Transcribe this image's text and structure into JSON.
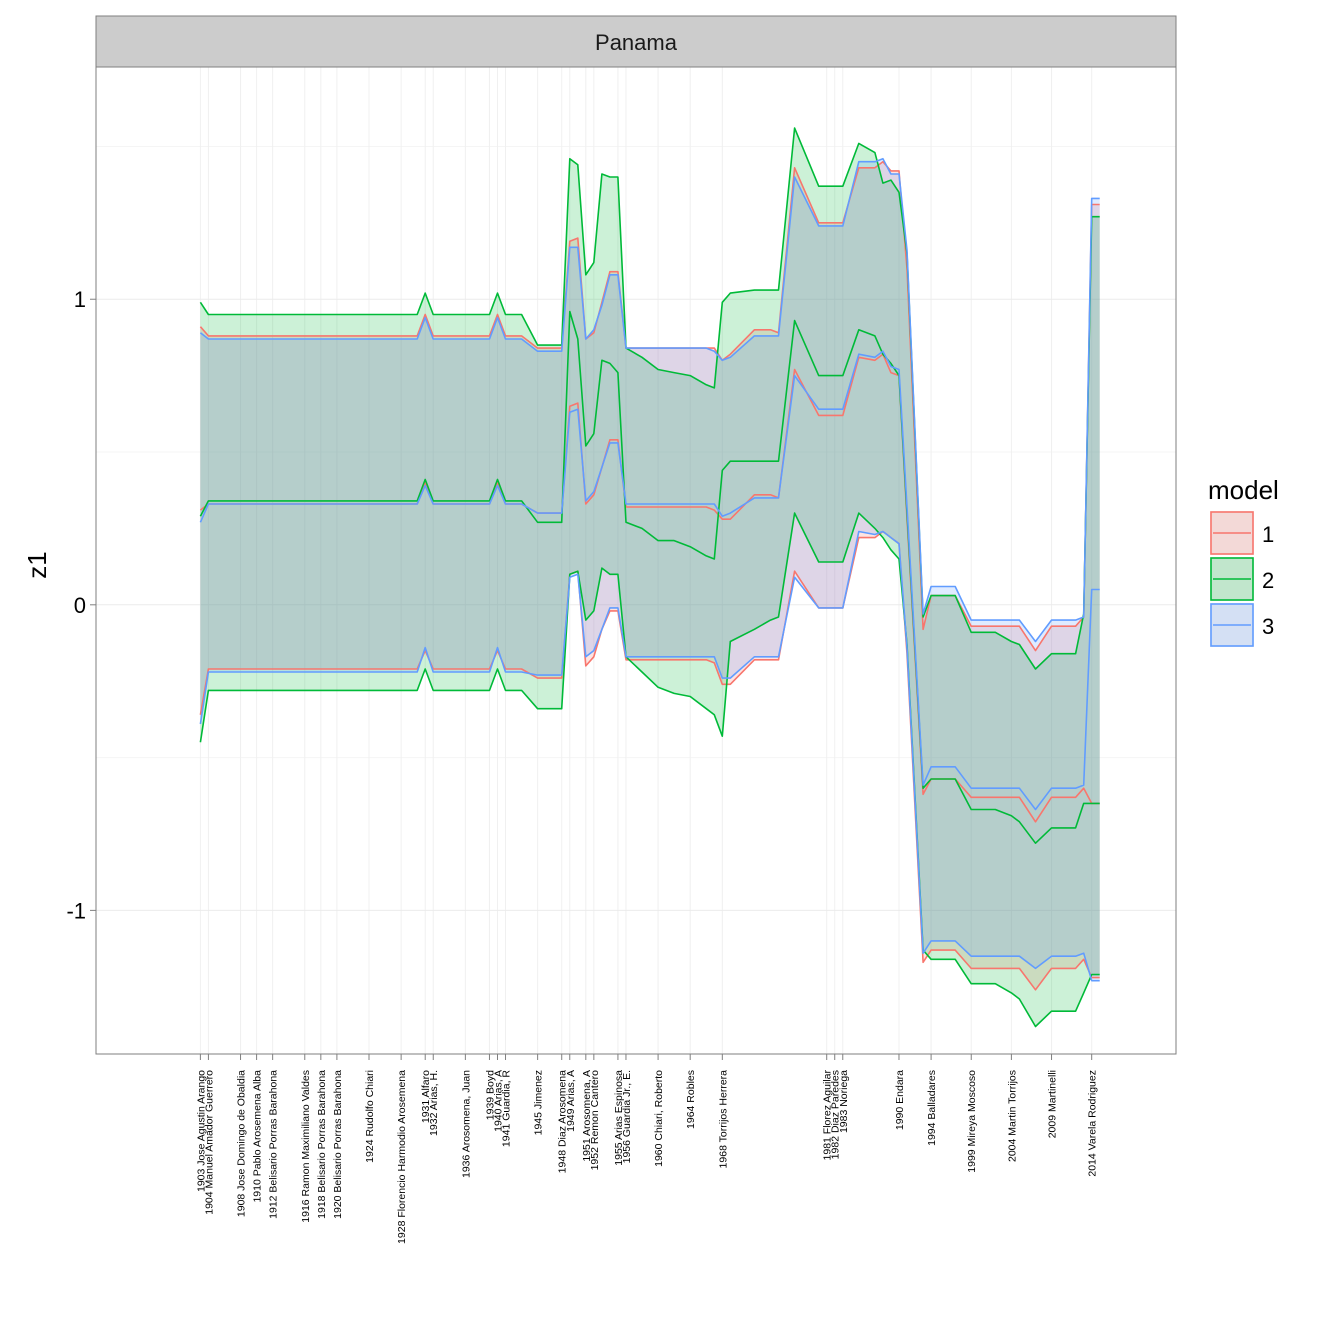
{
  "chart_data": {
    "type": "area",
    "facet_title": "Panama",
    "ylabel": "z1",
    "xlabel": "",
    "ylim": [
      -1.47,
      1.76
    ],
    "xlim": [
      1890.0,
      2024.5
    ],
    "yticks": [
      -1,
      0,
      1
    ],
    "legend": {
      "title": "model",
      "position": "right",
      "items": [
        {
          "label": "1",
          "color": "#F8766D"
        },
        {
          "label": "2",
          "color": "#00BA38"
        },
        {
          "label": "3",
          "color": "#619CFF"
        }
      ]
    },
    "x_ticks": [
      {
        "x": 1903,
        "label": "1903 Jose Agustin Arango"
      },
      {
        "x": 1904,
        "label": "1904 Manuel Amador Guerrero"
      },
      {
        "x": 1908,
        "label": "1908 Jose Domingo de Obaldia"
      },
      {
        "x": 1910,
        "label": "1910 Pablo Arosemena Alba"
      },
      {
        "x": 1912,
        "label": "1912 Belisario Porras Barahona"
      },
      {
        "x": 1916,
        "label": "1916 Ramon Maximiliano Valdes"
      },
      {
        "x": 1918,
        "label": "1918 Belisario Porras Barahona"
      },
      {
        "x": 1920,
        "label": "1920 Belisario Porras Barahona"
      },
      {
        "x": 1924,
        "label": "1924 Rudolfo Chiari"
      },
      {
        "x": 1928,
        "label": "1928 Florencio Harmodio Arosemena"
      },
      {
        "x": 1931,
        "label": "1931 Alfaro"
      },
      {
        "x": 1932,
        "label": "1932 Arias, H."
      },
      {
        "x": 1936,
        "label": "1936 Arosomena, Juan"
      },
      {
        "x": 1939,
        "label": "1939 Boyd"
      },
      {
        "x": 1940,
        "label": "1940 Arias, A"
      },
      {
        "x": 1941,
        "label": "1941 Guardia, R"
      },
      {
        "x": 1945,
        "label": "1945 Jimenez"
      },
      {
        "x": 1948,
        "label": "1948 Diaz Arosomena"
      },
      {
        "x": 1949,
        "label": "1949 Arias, A"
      },
      {
        "x": 1951,
        "label": "1951 Arosomena, A"
      },
      {
        "x": 1952,
        "label": "1952 Remon Cantero"
      },
      {
        "x": 1955,
        "label": "1955 Arias Espinosa"
      },
      {
        "x": 1956,
        "label": "1956 Guardia Jr., E."
      },
      {
        "x": 1960,
        "label": "1960 Chiari, Roberto"
      },
      {
        "x": 1964,
        "label": "1964 Robles"
      },
      {
        "x": 1968,
        "label": "1968 Torrijos Herrera"
      },
      {
        "x": 1981,
        "label": "1981 Florez Aguilar"
      },
      {
        "x": 1982,
        "label": "1982 Diaz Paredes"
      },
      {
        "x": 1983,
        "label": "1983 Noriega"
      },
      {
        "x": 1990,
        "label": "1990 Endara"
      },
      {
        "x": 1994,
        "label": "1994 Balladares"
      },
      {
        "x": 1999,
        "label": "1999 Mireya Moscoso"
      },
      {
        "x": 2004,
        "label": "2004 Martin Torrijos"
      },
      {
        "x": 2009,
        "label": "2009 Martinelli"
      },
      {
        "x": 2014,
        "label": "2014 Varela Rodriguez"
      }
    ],
    "x": [
      1903,
      1904,
      1906,
      1908,
      1910,
      1912,
      1914,
      1916,
      1918,
      1920,
      1922,
      1924,
      1926,
      1928,
      1930,
      1931,
      1932,
      1934,
      1936,
      1938,
      1939,
      1940,
      1941,
      1943,
      1945,
      1946,
      1948,
      1949,
      1950,
      1951,
      1952,
      1953,
      1954,
      1955,
      1956,
      1958,
      1960,
      1962,
      1964,
      1966,
      1967,
      1968,
      1969,
      1972,
      1974,
      1975,
      1977,
      1980,
      1981,
      1982,
      1983,
      1985,
      1987,
      1988,
      1989,
      1990,
      1991,
      1993,
      1994,
      1997,
      1999,
      2002,
      2004,
      2005,
      2007,
      2009,
      2011,
      2012,
      2013,
      2014,
      2015
    ],
    "series": [
      {
        "name": "1",
        "mean": [
          0.31,
          0.33,
          0.33,
          0.33,
          0.33,
          0.33,
          0.33,
          0.33,
          0.33,
          0.33,
          0.33,
          0.33,
          0.33,
          0.33,
          0.33,
          0.4,
          0.33,
          0.33,
          0.33,
          0.33,
          0.33,
          0.4,
          0.33,
          0.33,
          0.3,
          0.3,
          0.3,
          0.65,
          0.66,
          0.33,
          0.36,
          0.45,
          0.54,
          0.54,
          0.32,
          0.32,
          0.32,
          0.32,
          0.32,
          0.32,
          0.31,
          0.28,
          0.28,
          0.36,
          0.36,
          0.35,
          0.77,
          0.62,
          0.62,
          0.62,
          0.62,
          0.81,
          0.8,
          0.82,
          0.76,
          0.75,
          0.28,
          -0.62,
          -0.57,
          -0.57,
          -0.63,
          -0.63,
          -0.63,
          -0.63,
          -0.71,
          -0.63,
          -0.63,
          -0.63,
          -0.6,
          -0.65,
          -0.65
        ],
        "lower": [
          -0.36,
          -0.21,
          -0.21,
          -0.21,
          -0.21,
          -0.21,
          -0.21,
          -0.21,
          -0.21,
          -0.21,
          -0.21,
          -0.21,
          -0.21,
          -0.21,
          -0.21,
          -0.15,
          -0.21,
          -0.21,
          -0.21,
          -0.21,
          -0.21,
          -0.15,
          -0.21,
          -0.21,
          -0.24,
          -0.24,
          -0.24,
          0.1,
          0.11,
          -0.2,
          -0.17,
          -0.08,
          -0.02,
          -0.02,
          -0.18,
          -0.18,
          -0.18,
          -0.18,
          -0.18,
          -0.18,
          -0.19,
          -0.26,
          -0.26,
          -0.18,
          -0.18,
          -0.18,
          0.11,
          -0.01,
          -0.01,
          -0.01,
          -0.01,
          0.22,
          0.22,
          0.24,
          0.22,
          0.2,
          -0.16,
          -1.17,
          -1.13,
          -1.13,
          -1.19,
          -1.19,
          -1.19,
          -1.19,
          -1.26,
          -1.19,
          -1.19,
          -1.19,
          -1.16,
          -1.22,
          -1.22
        ],
        "upper": [
          0.91,
          0.88,
          0.88,
          0.88,
          0.88,
          0.88,
          0.88,
          0.88,
          0.88,
          0.88,
          0.88,
          0.88,
          0.88,
          0.88,
          0.88,
          0.95,
          0.88,
          0.88,
          0.88,
          0.88,
          0.88,
          0.95,
          0.88,
          0.88,
          0.84,
          0.84,
          0.84,
          1.19,
          1.2,
          0.87,
          0.89,
          0.99,
          1.09,
          1.09,
          0.84,
          0.84,
          0.84,
          0.84,
          0.84,
          0.84,
          0.84,
          0.8,
          0.82,
          0.9,
          0.9,
          0.89,
          1.43,
          1.25,
          1.25,
          1.25,
          1.25,
          1.43,
          1.43,
          1.45,
          1.42,
          1.42,
          1.1,
          -0.08,
          0.03,
          0.03,
          -0.07,
          -0.07,
          -0.07,
          -0.07,
          -0.15,
          -0.07,
          -0.07,
          -0.07,
          -0.04,
          1.31,
          1.31
        ]
      },
      {
        "name": "2",
        "mean": [
          0.29,
          0.34,
          0.34,
          0.34,
          0.34,
          0.34,
          0.34,
          0.34,
          0.34,
          0.34,
          0.34,
          0.34,
          0.34,
          0.34,
          0.34,
          0.41,
          0.34,
          0.34,
          0.34,
          0.34,
          0.34,
          0.41,
          0.34,
          0.34,
          0.27,
          0.27,
          0.27,
          0.96,
          0.87,
          0.52,
          0.56,
          0.8,
          0.79,
          0.76,
          0.27,
          0.25,
          0.21,
          0.21,
          0.19,
          0.16,
          0.15,
          0.44,
          0.47,
          0.47,
          0.47,
          0.47,
          0.93,
          0.75,
          0.75,
          0.75,
          0.75,
          0.9,
          0.88,
          0.82,
          0.79,
          0.75,
          0.3,
          -0.6,
          -0.57,
          -0.57,
          -0.67,
          -0.67,
          -0.69,
          -0.71,
          -0.78,
          -0.73,
          -0.73,
          -0.73,
          -0.65,
          -0.65,
          -0.65
        ],
        "lower": [
          -0.45,
          -0.28,
          -0.28,
          -0.28,
          -0.28,
          -0.28,
          -0.28,
          -0.28,
          -0.28,
          -0.28,
          -0.28,
          -0.28,
          -0.28,
          -0.28,
          -0.28,
          -0.21,
          -0.28,
          -0.28,
          -0.28,
          -0.28,
          -0.28,
          -0.21,
          -0.28,
          -0.28,
          -0.34,
          -0.34,
          -0.34,
          0.1,
          0.11,
          -0.05,
          -0.02,
          0.12,
          0.1,
          0.1,
          -0.17,
          -0.22,
          -0.27,
          -0.29,
          -0.3,
          -0.34,
          -0.36,
          -0.43,
          -0.12,
          -0.08,
          -0.05,
          -0.04,
          0.3,
          0.14,
          0.14,
          0.14,
          0.14,
          0.3,
          0.25,
          0.22,
          0.18,
          0.15,
          -0.13,
          -1.13,
          -1.16,
          -1.16,
          -1.24,
          -1.24,
          -1.27,
          -1.29,
          -1.38,
          -1.33,
          -1.33,
          -1.33,
          -1.27,
          -1.21,
          -1.21
        ],
        "upper": [
          0.99,
          0.95,
          0.95,
          0.95,
          0.95,
          0.95,
          0.95,
          0.95,
          0.95,
          0.95,
          0.95,
          0.95,
          0.95,
          0.95,
          0.95,
          1.02,
          0.95,
          0.95,
          0.95,
          0.95,
          0.95,
          1.02,
          0.95,
          0.95,
          0.85,
          0.85,
          0.85,
          1.46,
          1.44,
          1.08,
          1.12,
          1.41,
          1.4,
          1.4,
          0.84,
          0.81,
          0.77,
          0.76,
          0.75,
          0.72,
          0.71,
          0.99,
          1.02,
          1.03,
          1.03,
          1.03,
          1.56,
          1.37,
          1.37,
          1.37,
          1.37,
          1.51,
          1.48,
          1.38,
          1.39,
          1.35,
          1.15,
          -0.04,
          0.03,
          0.03,
          -0.09,
          -0.09,
          -0.12,
          -0.13,
          -0.21,
          -0.16,
          -0.16,
          -0.16,
          -0.03,
          1.27,
          1.27
        ]
      },
      {
        "name": "3",
        "mean": [
          0.27,
          0.33,
          0.33,
          0.33,
          0.33,
          0.33,
          0.33,
          0.33,
          0.33,
          0.33,
          0.33,
          0.33,
          0.33,
          0.33,
          0.33,
          0.39,
          0.33,
          0.33,
          0.33,
          0.33,
          0.33,
          0.39,
          0.33,
          0.33,
          0.3,
          0.3,
          0.3,
          0.63,
          0.64,
          0.34,
          0.37,
          0.45,
          0.53,
          0.53,
          0.33,
          0.33,
          0.33,
          0.33,
          0.33,
          0.33,
          0.33,
          0.29,
          0.3,
          0.35,
          0.35,
          0.35,
          0.75,
          0.64,
          0.64,
          0.64,
          0.64,
          0.82,
          0.81,
          0.83,
          0.78,
          0.77,
          0.32,
          -0.59,
          -0.53,
          -0.53,
          -0.6,
          -0.6,
          -0.6,
          -0.6,
          -0.67,
          -0.6,
          -0.6,
          -0.6,
          -0.59,
          0.05,
          0.05
        ],
        "lower": [
          -0.39,
          -0.22,
          -0.22,
          -0.22,
          -0.22,
          -0.22,
          -0.22,
          -0.22,
          -0.22,
          -0.22,
          -0.22,
          -0.22,
          -0.22,
          -0.22,
          -0.22,
          -0.14,
          -0.22,
          -0.22,
          -0.22,
          -0.22,
          -0.22,
          -0.14,
          -0.22,
          -0.22,
          -0.23,
          -0.23,
          -0.23,
          0.09,
          0.1,
          -0.17,
          -0.15,
          -0.08,
          -0.01,
          -0.01,
          -0.17,
          -0.17,
          -0.17,
          -0.17,
          -0.17,
          -0.17,
          -0.17,
          -0.24,
          -0.24,
          -0.17,
          -0.17,
          -0.17,
          0.09,
          -0.01,
          -0.01,
          -0.01,
          -0.01,
          0.24,
          0.23,
          0.24,
          0.22,
          0.2,
          -0.14,
          -1.14,
          -1.1,
          -1.1,
          -1.15,
          -1.15,
          -1.15,
          -1.15,
          -1.19,
          -1.15,
          -1.15,
          -1.15,
          -1.14,
          -1.23,
          -1.23
        ],
        "upper": [
          0.89,
          0.87,
          0.87,
          0.87,
          0.87,
          0.87,
          0.87,
          0.87,
          0.87,
          0.87,
          0.87,
          0.87,
          0.87,
          0.87,
          0.87,
          0.94,
          0.87,
          0.87,
          0.87,
          0.87,
          0.87,
          0.94,
          0.87,
          0.87,
          0.83,
          0.83,
          0.83,
          1.17,
          1.17,
          0.87,
          0.9,
          0.98,
          1.08,
          1.08,
          0.84,
          0.84,
          0.84,
          0.84,
          0.84,
          0.84,
          0.83,
          0.8,
          0.81,
          0.88,
          0.88,
          0.88,
          1.4,
          1.24,
          1.24,
          1.24,
          1.24,
          1.45,
          1.45,
          1.46,
          1.41,
          1.41,
          1.16,
          -0.03,
          0.06,
          0.06,
          -0.05,
          -0.05,
          -0.05,
          -0.05,
          -0.12,
          -0.05,
          -0.05,
          -0.05,
          -0.04,
          1.33,
          1.33
        ]
      }
    ]
  }
}
